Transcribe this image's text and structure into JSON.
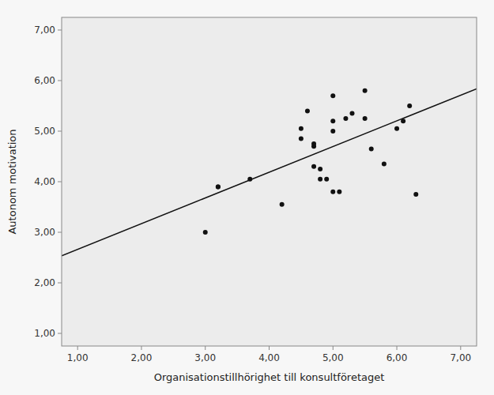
{
  "chart_data": {
    "type": "scatter",
    "xlabel": "Organisationstillhörighet till konsultföretaget",
    "ylabel": "Autonom motivation",
    "xlim": [
      0.75,
      7.25
    ],
    "ylim": [
      0.75,
      7.25
    ],
    "xticks": [
      {
        "value": 1.0,
        "label": "1,00"
      },
      {
        "value": 2.0,
        "label": "2,00"
      },
      {
        "value": 3.0,
        "label": "3,00"
      },
      {
        "value": 4.0,
        "label": "4,00"
      },
      {
        "value": 5.0,
        "label": "5,00"
      },
      {
        "value": 6.0,
        "label": "6,00"
      },
      {
        "value": 7.0,
        "label": "7,00"
      }
    ],
    "yticks": [
      {
        "value": 1.0,
        "label": "1,00"
      },
      {
        "value": 2.0,
        "label": "2,00"
      },
      {
        "value": 3.0,
        "label": "3,00"
      },
      {
        "value": 4.0,
        "label": "4,00"
      },
      {
        "value": 5.0,
        "label": "5,00"
      },
      {
        "value": 6.0,
        "label": "6,00"
      },
      {
        "value": 7.0,
        "label": "7,00"
      }
    ],
    "grid": false,
    "series": [
      {
        "type": "scatter",
        "color": "#111111",
        "x": [
          3.0,
          3.2,
          3.2,
          3.7,
          4.2,
          4.5,
          4.5,
          4.6,
          4.7,
          4.7,
          4.7,
          4.8,
          4.8,
          4.9,
          5.0,
          5.0,
          5.0,
          5.0,
          5.1,
          5.2,
          5.3,
          5.5,
          5.5,
          5.6,
          5.8,
          6.0,
          6.1,
          6.2,
          6.3
        ],
        "values": [
          3.0,
          3.9,
          3.9,
          4.05,
          3.55,
          5.05,
          4.85,
          5.4,
          4.7,
          4.75,
          4.3,
          4.25,
          4.05,
          4.05,
          5.7,
          5.2,
          5.0,
          3.8,
          3.8,
          5.25,
          5.35,
          5.8,
          5.25,
          4.65,
          4.35,
          5.05,
          5.2,
          5.5,
          3.75
        ]
      },
      {
        "type": "line",
        "color": "#111111",
        "x": [
          0.75,
          7.25
        ],
        "values": [
          2.536,
          5.838
        ]
      }
    ]
  }
}
